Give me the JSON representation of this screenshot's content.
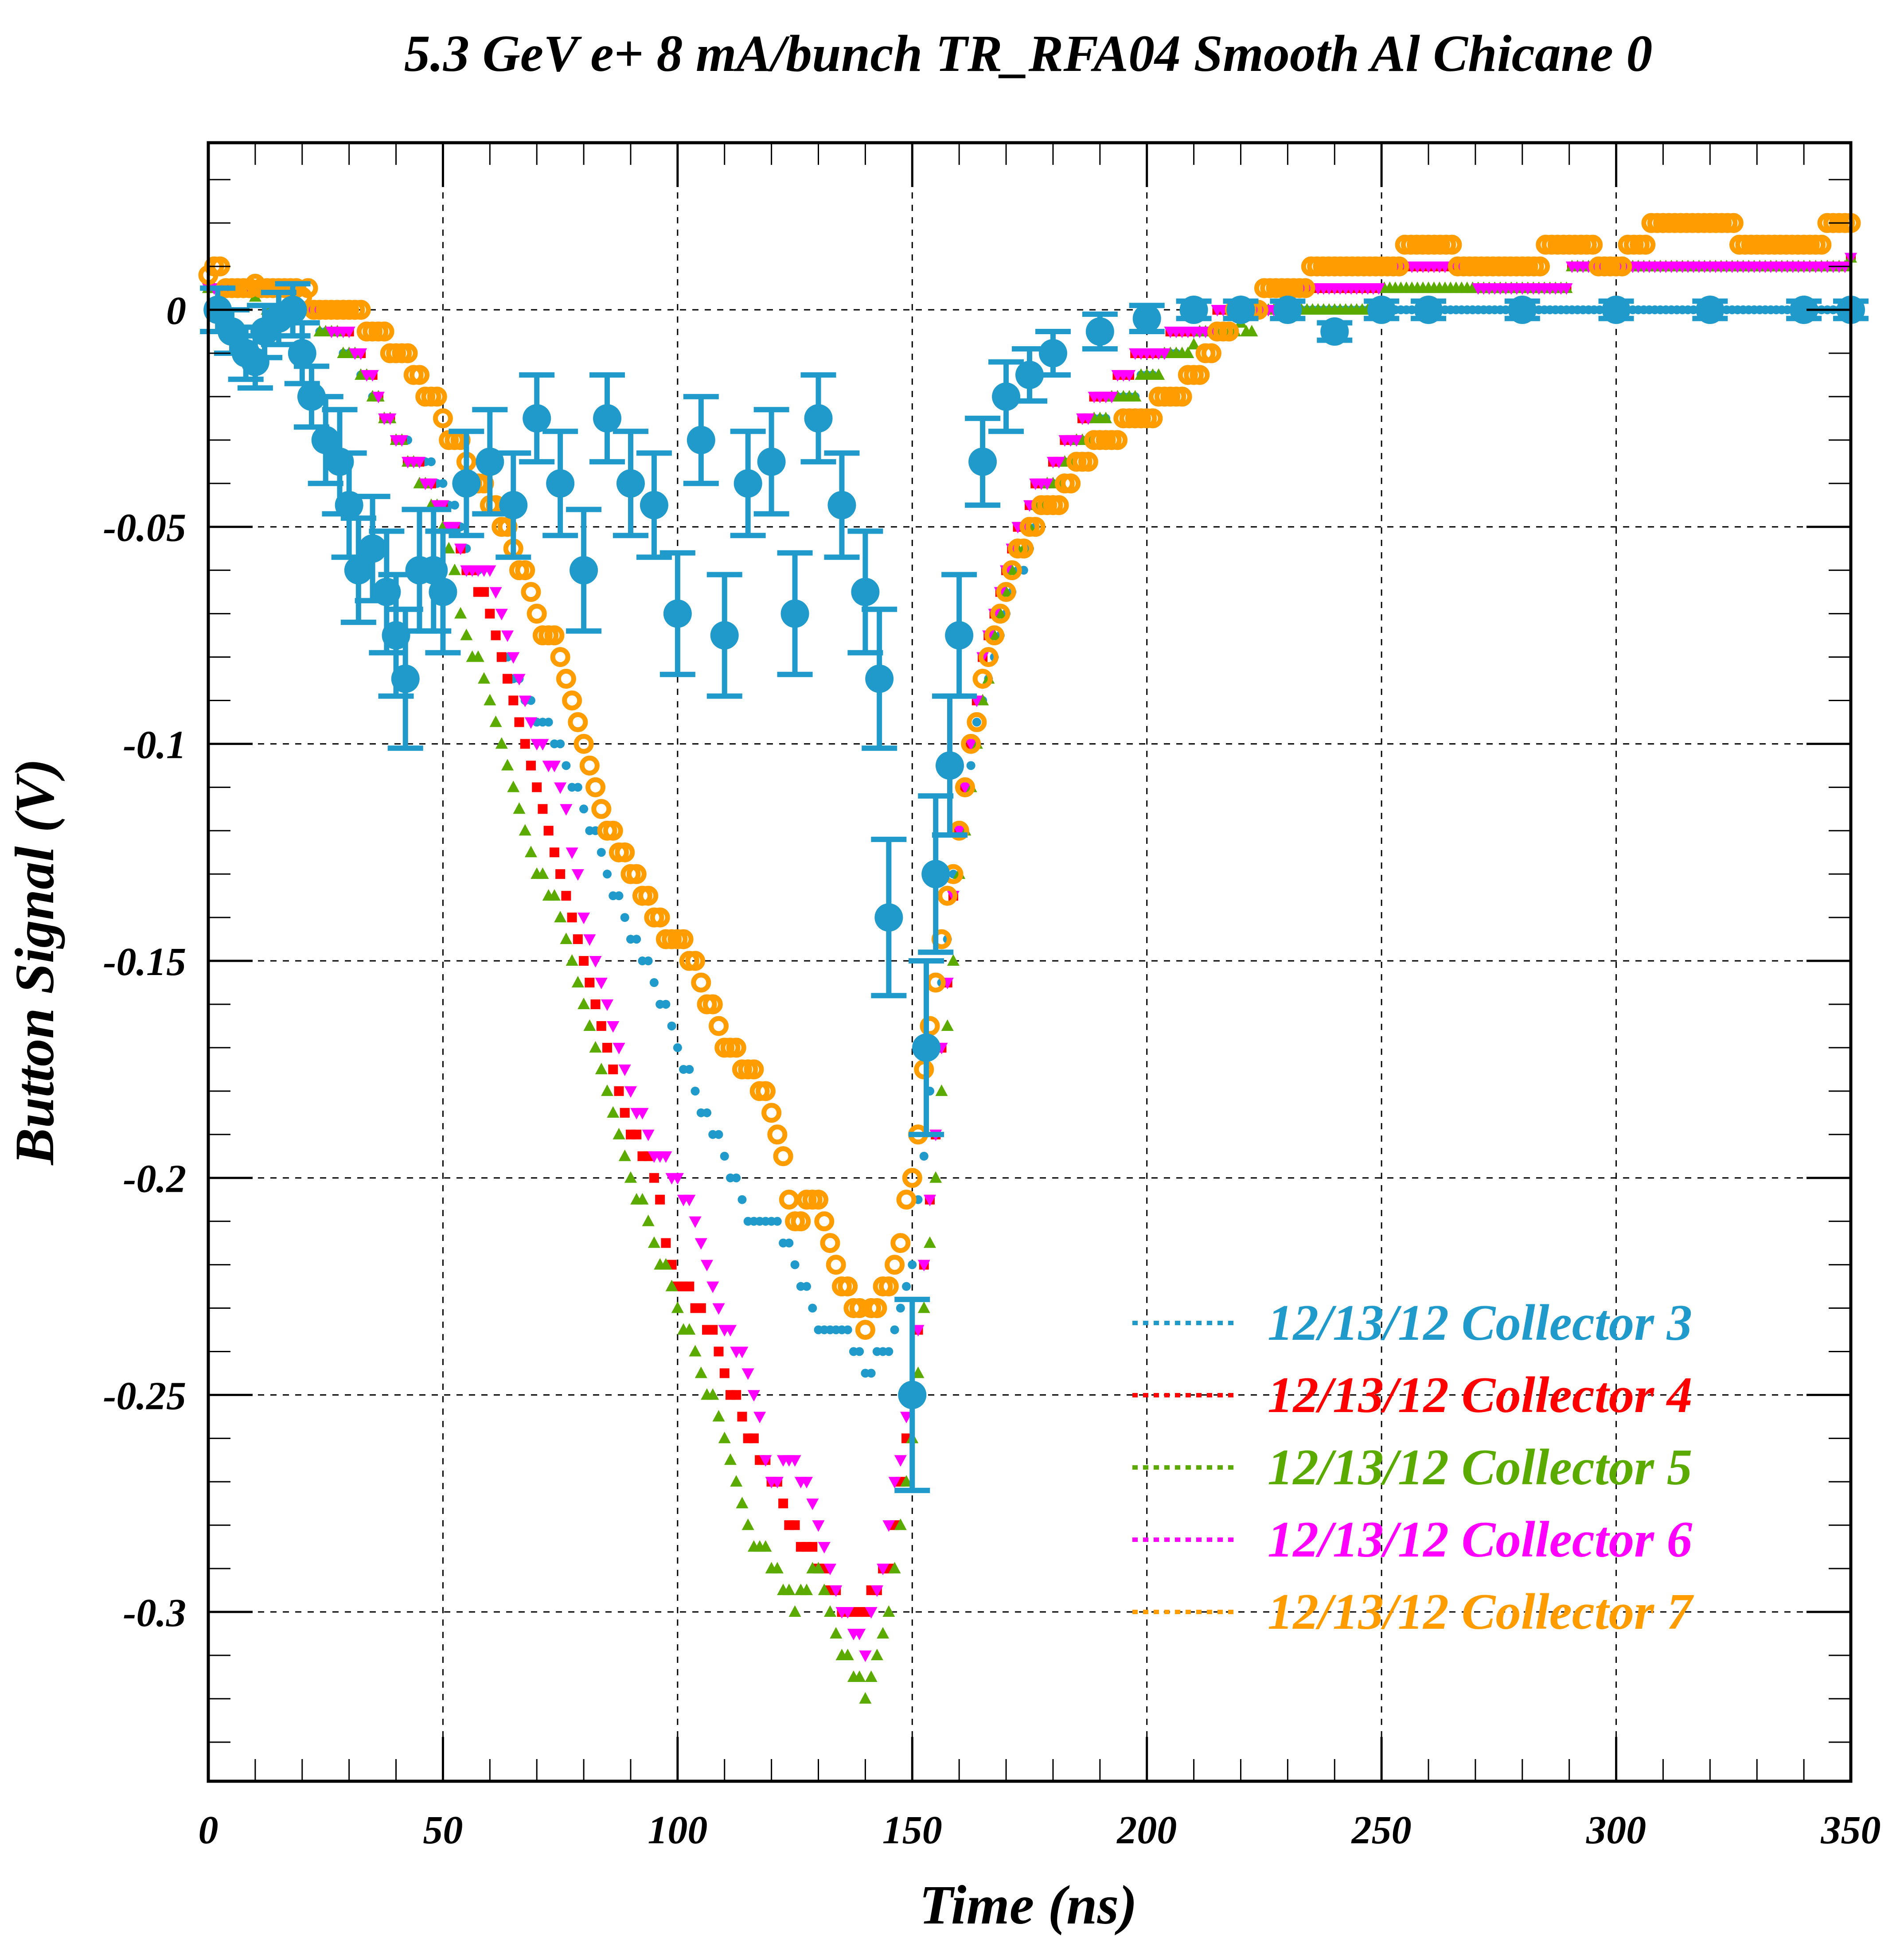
{
  "chart_data": {
    "type": "scatter",
    "title": "5.3 GeV e+ 8 mA/bunch  TR_RFA04 Smooth Al Chicane 0",
    "xlabel": "Time (ns)",
    "ylabel": "Button Signal (V)",
    "xlim": [
      0,
      350
    ],
    "ylim": [
      -0.339,
      0.0385
    ],
    "xticks": [
      0,
      50,
      100,
      150,
      200,
      250,
      300,
      350
    ],
    "xtick_labels": [
      "0",
      "50",
      "100",
      "150",
      "200",
      "250",
      "300",
      "350"
    ],
    "yticks": [
      0,
      -0.05,
      -0.1,
      -0.15,
      -0.2,
      -0.25,
      -0.3
    ],
    "ytick_labels": [
      "0",
      "-0.05",
      "-0.1",
      "-0.15",
      "-0.2",
      "-0.25",
      "-0.3"
    ],
    "grid": true,
    "legend_position": "bottom-right",
    "series": [
      {
        "name": "12/13/12 Collector 3",
        "color": "#1f9acb",
        "marker": "small-circle",
        "x": [
          0,
          10,
          20,
          30,
          40,
          50,
          55,
          60,
          65,
          70,
          75,
          80,
          85,
          90,
          95,
          100,
          105,
          110,
          115,
          120,
          125,
          130,
          135,
          140,
          145,
          150,
          155,
          160,
          165,
          170,
          175,
          180,
          190,
          200,
          210,
          220,
          240,
          260,
          280,
          300,
          320,
          340,
          350
        ],
        "y": [
          0.005,
          0.005,
          0.0,
          -0.01,
          -0.03,
          -0.04,
          -0.055,
          -0.07,
          -0.085,
          -0.095,
          -0.1,
          -0.115,
          -0.13,
          -0.145,
          -0.155,
          -0.17,
          -0.185,
          -0.195,
          -0.21,
          -0.21,
          -0.22,
          -0.235,
          -0.235,
          -0.245,
          -0.24,
          -0.22,
          -0.17,
          -0.12,
          -0.09,
          -0.07,
          -0.055,
          -0.04,
          -0.025,
          -0.015,
          -0.005,
          0.0,
          0.0,
          0.0,
          0.0,
          0.0,
          0.0,
          0.0,
          0.0
        ]
      },
      {
        "name": "12/13/12 Collector 4",
        "color": "#ff0000",
        "marker": "square",
        "x": [
          0,
          10,
          20,
          30,
          40,
          50,
          55,
          60,
          65,
          70,
          75,
          80,
          85,
          90,
          95,
          100,
          105,
          110,
          115,
          120,
          125,
          130,
          135,
          140,
          145,
          150,
          155,
          160,
          165,
          170,
          175,
          180,
          190,
          200,
          210,
          220,
          240,
          260,
          280,
          300,
          320,
          340,
          350
        ],
        "y": [
          0.005,
          0.005,
          0.0,
          -0.005,
          -0.03,
          -0.045,
          -0.06,
          -0.07,
          -0.09,
          -0.11,
          -0.13,
          -0.15,
          -0.17,
          -0.19,
          -0.2,
          -0.225,
          -0.23,
          -0.245,
          -0.26,
          -0.27,
          -0.28,
          -0.29,
          -0.3,
          -0.3,
          -0.29,
          -0.25,
          -0.19,
          -0.12,
          -0.08,
          -0.06,
          -0.045,
          -0.035,
          -0.02,
          -0.01,
          -0.005,
          0.0,
          0.005,
          0.01,
          0.005,
          0.01,
          0.01,
          0.01,
          0.012
        ]
      },
      {
        "name": "12/13/12 Collector 5",
        "color": "#5aaa00",
        "marker": "triangle-up",
        "x": [
          0,
          10,
          20,
          30,
          40,
          50,
          55,
          60,
          65,
          70,
          75,
          80,
          85,
          90,
          95,
          100,
          105,
          110,
          115,
          120,
          125,
          130,
          135,
          140,
          145,
          150,
          155,
          160,
          165,
          170,
          175,
          180,
          190,
          200,
          210,
          220,
          240,
          260,
          280,
          300,
          320,
          340,
          350
        ],
        "y": [
          0.005,
          0.003,
          0.0,
          -0.01,
          -0.03,
          -0.05,
          -0.075,
          -0.09,
          -0.11,
          -0.13,
          -0.14,
          -0.16,
          -0.18,
          -0.2,
          -0.215,
          -0.23,
          -0.245,
          -0.26,
          -0.28,
          -0.29,
          -0.3,
          -0.29,
          -0.31,
          -0.32,
          -0.3,
          -0.26,
          -0.2,
          -0.13,
          -0.09,
          -0.065,
          -0.05,
          -0.04,
          -0.025,
          -0.015,
          -0.008,
          -0.003,
          0.0,
          0.005,
          0.005,
          0.01,
          0.01,
          0.01,
          0.012
        ]
      },
      {
        "name": "12/13/12 Collector 6",
        "color": "#ff00ff",
        "marker": "triangle-down",
        "x": [
          0,
          10,
          20,
          30,
          40,
          50,
          55,
          60,
          65,
          70,
          75,
          80,
          85,
          90,
          95,
          100,
          105,
          110,
          115,
          120,
          125,
          130,
          135,
          140,
          145,
          150,
          155,
          160,
          165,
          170,
          175,
          180,
          190,
          200,
          210,
          220,
          240,
          260,
          280,
          300,
          320,
          340,
          350
        ],
        "y": [
          0.005,
          0.005,
          0.0,
          -0.005,
          -0.03,
          -0.045,
          -0.06,
          -0.06,
          -0.08,
          -0.1,
          -0.11,
          -0.14,
          -0.16,
          -0.18,
          -0.195,
          -0.2,
          -0.215,
          -0.235,
          -0.245,
          -0.27,
          -0.265,
          -0.28,
          -0.3,
          -0.31,
          -0.28,
          -0.25,
          -0.19,
          -0.12,
          -0.08,
          -0.06,
          -0.045,
          -0.035,
          -0.02,
          -0.01,
          -0.005,
          0.0,
          0.005,
          0.01,
          0.005,
          0.01,
          0.01,
          0.01,
          0.012
        ]
      },
      {
        "name": "12/13/12 Collector 7",
        "color": "#ff9c00",
        "marker": "open-circle",
        "x": [
          0,
          10,
          20,
          30,
          40,
          45,
          50,
          55,
          60,
          65,
          70,
          75,
          80,
          85,
          90,
          95,
          100,
          105,
          110,
          115,
          120,
          125,
          130,
          135,
          140,
          145,
          150,
          155,
          160,
          165,
          170,
          175,
          180,
          190,
          200,
          210,
          220,
          230,
          240,
          250,
          260,
          270,
          280,
          290,
          300,
          310,
          320,
          330,
          340,
          350
        ],
        "y": [
          0.008,
          0.006,
          0.003,
          0.0,
          -0.01,
          -0.015,
          -0.025,
          -0.035,
          -0.045,
          -0.055,
          -0.07,
          -0.08,
          -0.1,
          -0.12,
          -0.13,
          -0.14,
          -0.145,
          -0.155,
          -0.17,
          -0.175,
          -0.185,
          -0.21,
          -0.205,
          -0.225,
          -0.235,
          -0.225,
          -0.2,
          -0.155,
          -0.12,
          -0.085,
          -0.065,
          -0.05,
          -0.045,
          -0.03,
          -0.025,
          -0.015,
          0.0,
          0.005,
          0.01,
          0.01,
          0.015,
          0.01,
          0.01,
          0.015,
          0.01,
          0.02,
          0.02,
          0.015,
          0.015,
          0.02
        ]
      },
      {
        "name": "",
        "color": "#1f9acb",
        "marker": "large-circle-errorbar",
        "x": [
          2,
          5,
          8,
          10,
          12,
          15,
          18,
          20,
          22,
          25,
          28,
          30,
          32,
          35,
          38,
          40,
          42,
          45,
          48,
          50,
          55,
          60,
          65,
          70,
          75,
          80,
          85,
          90,
          95,
          100,
          105,
          110,
          115,
          120,
          125,
          130,
          135,
          140,
          143,
          145,
          150,
          153,
          155,
          158,
          160,
          165,
          170,
          175,
          180,
          190,
          200,
          210,
          220,
          230,
          240,
          250,
          260,
          280,
          300,
          320,
          340,
          350
        ],
        "y": [
          0.0,
          -0.005,
          -0.01,
          -0.012,
          -0.005,
          -0.002,
          0.0,
          -0.01,
          -0.02,
          -0.03,
          -0.035,
          -0.045,
          -0.06,
          -0.055,
          -0.065,
          -0.075,
          -0.085,
          -0.06,
          -0.06,
          -0.065,
          -0.04,
          -0.035,
          -0.045,
          -0.025,
          -0.04,
          -0.06,
          -0.025,
          -0.04,
          -0.045,
          -0.07,
          -0.03,
          -0.075,
          -0.04,
          -0.035,
          -0.07,
          -0.025,
          -0.045,
          -0.065,
          -0.085,
          -0.14,
          -0.25,
          -0.17,
          -0.13,
          -0.105,
          -0.075,
          -0.035,
          -0.02,
          -0.015,
          -0.01,
          -0.005,
          -0.002,
          0.0,
          0.0,
          0.0,
          -0.005,
          0.0,
          0.0,
          0.0,
          0.0,
          0.0,
          0.0,
          0.0
        ],
        "err": [
          0.005,
          0.005,
          0.006,
          0.006,
          0.006,
          0.006,
          0.006,
          0.007,
          0.007,
          0.01,
          0.012,
          0.012,
          0.012,
          0.012,
          0.014,
          0.014,
          0.016,
          0.014,
          0.014,
          0.014,
          0.012,
          0.012,
          0.012,
          0.01,
          0.012,
          0.014,
          0.01,
          0.012,
          0.012,
          0.014,
          0.01,
          0.014,
          0.012,
          0.012,
          0.014,
          0.01,
          0.012,
          0.014,
          0.016,
          0.018,
          0.022,
          0.02,
          0.018,
          0.016,
          0.014,
          0.01,
          0.008,
          0.006,
          0.005,
          0.004,
          0.003,
          0.002,
          0.002,
          0.002,
          0.002,
          0.002,
          0.002,
          0.002,
          0.002,
          0.002,
          0.002,
          0.002
        ]
      }
    ]
  }
}
